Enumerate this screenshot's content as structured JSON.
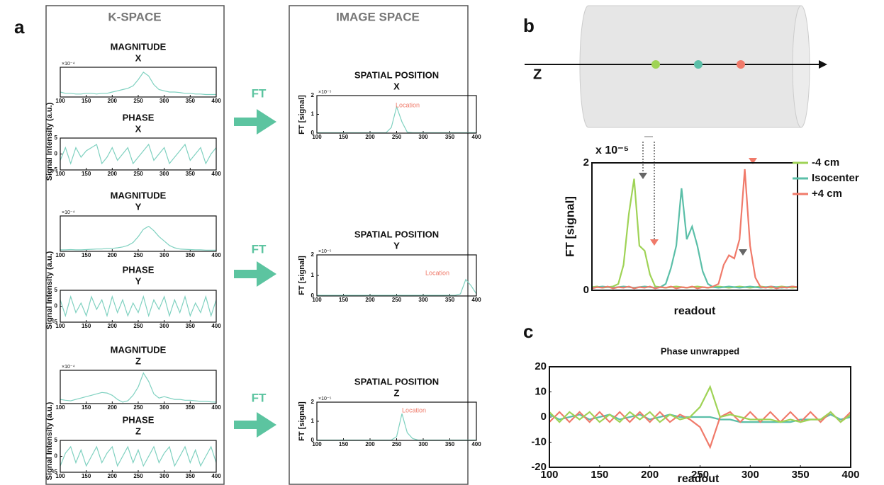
{
  "figure": {
    "panels": [
      "a",
      "b",
      "c"
    ],
    "kspace_heading": "K-SPACE",
    "image_heading": "IMAGE SPACE",
    "transform_labels": [
      "FT",
      "FT",
      "FT"
    ],
    "axis_label": "Z"
  },
  "chart_data": [
    {
      "type": "line",
      "title": "MAGNITUDE",
      "subtitle": "X",
      "ylabel": "Signal Intensity (a.u.)",
      "y_multiplier": "×10⁻⁴",
      "color": "#7fd1c0",
      "x": [
        100,
        110,
        120,
        130,
        140,
        150,
        160,
        170,
        180,
        190,
        200,
        210,
        220,
        230,
        240,
        250,
        260,
        270,
        280,
        290,
        300,
        310,
        320,
        330,
        340,
        350,
        360,
        370,
        380,
        390,
        400
      ],
      "values": [
        0.2,
        0.15,
        0.15,
        0.12,
        0.12,
        0.15,
        0.15,
        0.12,
        0.15,
        0.15,
        0.2,
        0.25,
        0.3,
        0.35,
        0.45,
        0.7,
        1.0,
        0.85,
        0.5,
        0.3,
        0.25,
        0.2,
        0.2,
        0.18,
        0.15,
        0.15,
        0.12,
        0.12,
        0.1,
        0.1,
        0.1
      ],
      "xlim": [
        100,
        400
      ],
      "ylim": [
        0,
        1.2
      ],
      "xticks": [
        100,
        150,
        200,
        250,
        300,
        350,
        400
      ]
    },
    {
      "type": "line",
      "title": "PHASE",
      "subtitle": "X",
      "color": "#7fd1c0",
      "x": [
        100,
        110,
        120,
        130,
        140,
        150,
        160,
        170,
        180,
        190,
        200,
        210,
        220,
        230,
        240,
        250,
        260,
        270,
        280,
        290,
        300,
        310,
        320,
        330,
        340,
        350,
        360,
        370,
        380,
        390,
        400
      ],
      "values": [
        -2,
        2,
        -3,
        2,
        -1,
        1,
        2,
        3,
        -3,
        -1,
        2,
        -2,
        0,
        2,
        -3,
        -1,
        1,
        3,
        -2,
        0,
        2,
        -3,
        -1,
        1,
        3,
        -2,
        0,
        2,
        -3,
        0,
        2
      ],
      "xlim": [
        100,
        400
      ],
      "ylim": [
        -5,
        5
      ],
      "xticks": [
        100,
        150,
        200,
        250,
        300,
        350,
        400
      ],
      "yticks": [
        -5,
        0,
        5
      ]
    },
    {
      "type": "line",
      "title": "MAGNITUDE",
      "subtitle": "Y",
      "ylabel": "Signal Intensity (a.u.)",
      "y_multiplier": "×10⁻⁴",
      "color": "#7fd1c0",
      "x": [
        100,
        110,
        120,
        130,
        140,
        150,
        160,
        170,
        180,
        190,
        200,
        210,
        220,
        230,
        240,
        250,
        260,
        270,
        280,
        290,
        300,
        310,
        320,
        330,
        340,
        350,
        360,
        370,
        380,
        390,
        400
      ],
      "values": [
        0.05,
        0.05,
        0.06,
        0.05,
        0.05,
        0.06,
        0.07,
        0.08,
        0.08,
        0.1,
        0.1,
        0.12,
        0.15,
        0.2,
        0.3,
        0.5,
        0.75,
        0.85,
        0.7,
        0.5,
        0.35,
        0.2,
        0.12,
        0.08,
        0.07,
        0.06,
        0.05,
        0.05,
        0.04,
        0.04,
        0.04
      ],
      "xlim": [
        100,
        400
      ],
      "ylim": [
        0,
        1.2
      ],
      "xticks": [
        100,
        150,
        200,
        250,
        300,
        350,
        400
      ]
    },
    {
      "type": "line",
      "title": "PHASE",
      "subtitle": "Y",
      "color": "#7fd1c0",
      "x": [
        100,
        110,
        120,
        130,
        140,
        150,
        160,
        170,
        180,
        190,
        200,
        210,
        220,
        230,
        240,
        250,
        260,
        270,
        280,
        290,
        300,
        310,
        320,
        330,
        340,
        350,
        360,
        370,
        380,
        390,
        400
      ],
      "values": [
        2,
        -3,
        3,
        -2,
        1,
        -3,
        3,
        -1,
        2,
        -3,
        3,
        -2,
        2,
        -3,
        1,
        -2,
        3,
        -3,
        2,
        -1,
        3,
        -3,
        2,
        -2,
        3,
        -3,
        1,
        -2,
        3,
        -3,
        2
      ],
      "xlim": [
        100,
        400
      ],
      "ylim": [
        -5,
        5
      ],
      "xticks": [
        100,
        150,
        200,
        250,
        300,
        350,
        400
      ],
      "yticks": [
        -5,
        0,
        5
      ]
    },
    {
      "type": "line",
      "title": "MAGNITUDE",
      "subtitle": "Z",
      "ylabel": "Signal Intensity (a.u.)",
      "y_multiplier": "×10⁻⁴",
      "color": "#7fd1c0",
      "x": [
        100,
        110,
        120,
        130,
        140,
        150,
        160,
        170,
        180,
        190,
        200,
        210,
        220,
        230,
        240,
        250,
        260,
        270,
        280,
        290,
        300,
        310,
        320,
        330,
        340,
        350,
        360,
        370,
        380,
        390,
        400
      ],
      "values": [
        0.15,
        0.12,
        0.1,
        0.15,
        0.2,
        0.25,
        0.3,
        0.35,
        0.4,
        0.38,
        0.3,
        0.15,
        0.05,
        0.1,
        0.3,
        0.6,
        1.1,
        0.8,
        0.35,
        0.2,
        0.25,
        0.2,
        0.15,
        0.15,
        0.12,
        0.12,
        0.1,
        0.08,
        0.08,
        0.06,
        0.05
      ],
      "xlim": [
        100,
        400
      ],
      "ylim": [
        0,
        1.2
      ],
      "xticks": [
        100,
        150,
        200,
        250,
        300,
        350,
        400
      ]
    },
    {
      "type": "line",
      "title": "PHASE",
      "subtitle": "Z",
      "color": "#7fd1c0",
      "x": [
        100,
        110,
        120,
        130,
        140,
        150,
        160,
        170,
        180,
        190,
        200,
        210,
        220,
        230,
        240,
        250,
        260,
        270,
        280,
        290,
        300,
        310,
        320,
        330,
        340,
        350,
        360,
        370,
        380,
        390,
        400
      ],
      "values": [
        -3,
        1,
        3,
        -2,
        2,
        -3,
        0,
        3,
        -2,
        1,
        3,
        -3,
        0,
        3,
        -2,
        2,
        -3,
        0,
        3,
        -2,
        1,
        3,
        -3,
        0,
        3,
        -2,
        2,
        -3,
        0,
        3,
        -2
      ],
      "xlim": [
        100,
        400
      ],
      "ylim": [
        -5,
        5
      ],
      "xticks": [
        100,
        150,
        200,
        250,
        300,
        350,
        400
      ],
      "yticks": [
        -5,
        0,
        5
      ]
    },
    {
      "type": "line",
      "title": "SPATIAL POSITION",
      "subtitle": "X",
      "ylabel": "FT [signal]",
      "y_multiplier": "×10⁻⁵",
      "annotation": "Location",
      "color": "#7fd1c0",
      "x": [
        100,
        110,
        120,
        130,
        140,
        150,
        160,
        170,
        180,
        190,
        200,
        210,
        220,
        230,
        240,
        250,
        260,
        270,
        280,
        290,
        300,
        310,
        320,
        330,
        340,
        350,
        360,
        370,
        380,
        390,
        400
      ],
      "values": [
        0.02,
        0.02,
        0.02,
        0.02,
        0.02,
        0.02,
        0.02,
        0.02,
        0.02,
        0.02,
        0.02,
        0.02,
        0.02,
        0.02,
        0.3,
        1.4,
        0.6,
        0.05,
        0.02,
        0.02,
        0.02,
        0.02,
        0.02,
        0.02,
        0.02,
        0.02,
        0.02,
        0.02,
        0.02,
        0.02,
        0.02
      ],
      "xlim": [
        100,
        400
      ],
      "ylim": [
        0,
        2
      ],
      "xticks": [
        100,
        150,
        200,
        250,
        300,
        350,
        400
      ],
      "yticks": [
        0,
        1,
        2
      ]
    },
    {
      "type": "line",
      "title": "SPATIAL POSITION",
      "subtitle": "Y",
      "ylabel": "FT [signal]",
      "y_multiplier": "×10⁻⁵",
      "annotation": "Location",
      "color": "#7fd1c0",
      "x": [
        100,
        110,
        120,
        130,
        140,
        150,
        160,
        170,
        180,
        190,
        200,
        210,
        220,
        230,
        240,
        250,
        260,
        270,
        280,
        290,
        300,
        310,
        320,
        330,
        340,
        350,
        360,
        370,
        380,
        390,
        400
      ],
      "values": [
        0.03,
        0.03,
        0.03,
        0.03,
        0.03,
        0.03,
        0.03,
        0.03,
        0.03,
        0.03,
        0.03,
        0.03,
        0.03,
        0.03,
        0.03,
        0.03,
        0.03,
        0.03,
        0.03,
        0.03,
        0.03,
        0.03,
        0.03,
        0.03,
        0.03,
        0.03,
        0.03,
        0.1,
        0.8,
        0.5,
        0.1
      ],
      "xlim": [
        100,
        400
      ],
      "ylim": [
        0,
        2
      ],
      "xticks": [
        100,
        150,
        200,
        250,
        300,
        350,
        400
      ],
      "yticks": [
        0,
        1,
        2
      ]
    },
    {
      "type": "line",
      "title": "SPATIAL POSITION",
      "subtitle": "Z",
      "ylabel": "FT [signal]",
      "y_multiplier": "×10⁻⁵",
      "annotation": "Location",
      "color": "#7fd1c0",
      "x": [
        100,
        110,
        120,
        130,
        140,
        150,
        160,
        170,
        180,
        190,
        200,
        210,
        220,
        230,
        240,
        250,
        260,
        270,
        280,
        290,
        300,
        310,
        320,
        330,
        340,
        350,
        360,
        370,
        380,
        390,
        400
      ],
      "values": [
        0.02,
        0.02,
        0.02,
        0.02,
        0.02,
        0.02,
        0.02,
        0.02,
        0.02,
        0.02,
        0.02,
        0.02,
        0.02,
        0.02,
        0.02,
        0.2,
        1.4,
        0.4,
        0.1,
        0.02,
        0.02,
        0.02,
        0.02,
        0.02,
        0.02,
        0.02,
        0.02,
        0.02,
        0.02,
        0.02,
        0.02
      ],
      "xlim": [
        100,
        400
      ],
      "ylim": [
        0,
        2
      ],
      "xticks": [
        100,
        150,
        200,
        250,
        300,
        350,
        400
      ],
      "yticks": [
        0,
        1,
        2
      ]
    },
    {
      "type": "line",
      "ylabel": "FT [signal]",
      "xlabel": "readout",
      "y_multiplier": "x 10⁻⁵",
      "ylim": [
        0,
        2
      ],
      "yticks": [
        0,
        2
      ],
      "series": [
        {
          "name": "-4 cm",
          "color": "#9fd356",
          "values": [
            0.05,
            0.06,
            0.04,
            0.05,
            0.06,
            0.1,
            0.4,
            1.2,
            1.75,
            0.7,
            0.62,
            0.25,
            0.06,
            0.05,
            0.04,
            0.05,
            0.06,
            0.05,
            0.04,
            0.05,
            0.06,
            0.05,
            0.04,
            0.05,
            0.06,
            0.05,
            0.04,
            0.05,
            0.06,
            0.05,
            0.04,
            0.05,
            0.06,
            0.05,
            0.04,
            0.05,
            0.06,
            0.05,
            0.04,
            0.05
          ]
        },
        {
          "name": "Isocenter",
          "color": "#5bbfa8",
          "values": [
            0.04,
            0.05,
            0.06,
            0.05,
            0.04,
            0.05,
            0.06,
            0.05,
            0.04,
            0.05,
            0.06,
            0.05,
            0.04,
            0.05,
            0.1,
            0.35,
            0.7,
            1.6,
            0.8,
            1.0,
            0.7,
            0.3,
            0.1,
            0.05,
            0.04,
            0.05,
            0.06,
            0.05,
            0.04,
            0.05,
            0.06,
            0.05,
            0.04,
            0.05,
            0.06,
            0.05,
            0.04,
            0.05,
            0.06,
            0.05
          ]
        },
        {
          "name": "+4 cm",
          "color": "#f07a6a",
          "values": [
            0.03,
            0.05,
            0.04,
            0.06,
            0.03,
            0.05,
            0.04,
            0.06,
            0.03,
            0.05,
            0.04,
            0.06,
            0.03,
            0.05,
            0.04,
            0.06,
            0.03,
            0.05,
            0.04,
            0.06,
            0.03,
            0.05,
            0.04,
            0.06,
            0.1,
            0.4,
            0.55,
            0.5,
            0.8,
            1.9,
            0.7,
            0.2,
            0.05,
            0.04,
            0.06,
            0.03,
            0.05,
            0.04,
            0.06,
            0.05
          ]
        }
      ]
    },
    {
      "type": "line",
      "title": "Phase unwrapped",
      "xlabel": "readout",
      "x": [
        100,
        110,
        120,
        130,
        140,
        150,
        160,
        170,
        180,
        190,
        200,
        210,
        220,
        230,
        240,
        250,
        260,
        270,
        280,
        290,
        300,
        310,
        320,
        330,
        340,
        350,
        360,
        370,
        380,
        390,
        400
      ],
      "xlim": [
        100,
        400
      ],
      "ylim": [
        -20,
        20
      ],
      "xticks": [
        100,
        150,
        200,
        250,
        300,
        350,
        400
      ],
      "yticks": [
        -20,
        -10,
        0,
        10,
        20
      ],
      "series": [
        {
          "color": "#5bbfa8",
          "values": [
            1,
            -1,
            0,
            1,
            -1,
            0,
            1,
            -1,
            0,
            1,
            -1,
            0,
            1,
            0,
            0,
            0,
            0,
            -1,
            -1,
            -2,
            -2,
            -2,
            -2,
            -2,
            -2,
            -1,
            -1,
            -1,
            1,
            -1,
            0
          ]
        },
        {
          "color": "#f07a6a",
          "values": [
            -2,
            2,
            -2,
            2,
            -2,
            2,
            -2,
            2,
            -2,
            2,
            -2,
            2,
            -2,
            1,
            -1,
            -4,
            -12,
            0,
            2,
            -2,
            2,
            -2,
            2,
            -2,
            2,
            -2,
            2,
            -2,
            2,
            -2,
            2
          ]
        },
        {
          "color": "#9fd356",
          "values": [
            2,
            -2,
            2,
            -1,
            2,
            -2,
            1,
            -2,
            2,
            -1,
            2,
            -2,
            1,
            -1,
            0,
            4,
            12,
            0,
            1,
            0,
            -1,
            -1,
            -1,
            -2,
            -1,
            -2,
            -1,
            -1,
            2,
            -2,
            1
          ]
        }
      ]
    }
  ]
}
